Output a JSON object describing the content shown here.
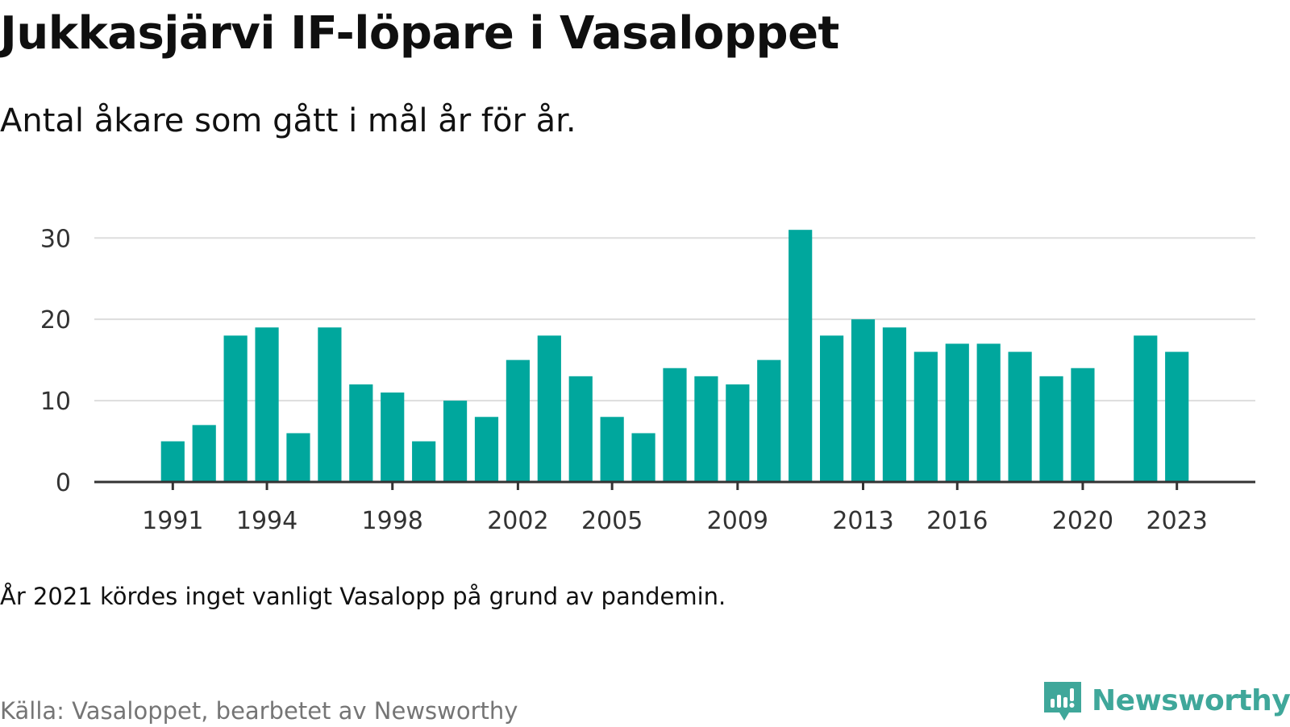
{
  "title": "Jukkasjärvi IF-löpare i Vasaloppet",
  "subtitle": "Antal åkare som gått i mål år för år.",
  "note": "År 2021 kördes inget vanligt Vasalopp på grund av pandemin.",
  "source": "Källa: Vasaloppet, bearbetet av Newsworthy",
  "brand": {
    "name": "Newsworthy",
    "icon": "newsworthy-logo-icon",
    "color": "#3fa79a"
  },
  "colors": {
    "bar": "#00a79d",
    "grid": "#dddddd",
    "axis": "#333333",
    "tick_text": "#333333"
  },
  "chart_data": {
    "type": "bar",
    "xlabel": "",
    "ylabel": "",
    "ylim": [
      0,
      33
    ],
    "grid": true,
    "legend": "none",
    "yticks": [
      0,
      10,
      20,
      30
    ],
    "xticks": [
      1991,
      1994,
      1998,
      2002,
      2005,
      2009,
      2013,
      2016,
      2020,
      2023
    ],
    "xlim": [
      1988.5,
      2025.5
    ],
    "categories": [
      1991,
      1992,
      1993,
      1994,
      1995,
      1996,
      1997,
      1998,
      1999,
      2000,
      2001,
      2002,
      2003,
      2004,
      2005,
      2006,
      2007,
      2008,
      2009,
      2010,
      2011,
      2012,
      2013,
      2014,
      2015,
      2016,
      2017,
      2018,
      2019,
      2020,
      2021,
      2022,
      2023
    ],
    "values": [
      5,
      7,
      18,
      19,
      6,
      19,
      12,
      11,
      5,
      10,
      8,
      15,
      18,
      13,
      8,
      6,
      14,
      13,
      12,
      15,
      31,
      18,
      20,
      19,
      16,
      17,
      17,
      16,
      13,
      14,
      null,
      18,
      16
    ]
  }
}
